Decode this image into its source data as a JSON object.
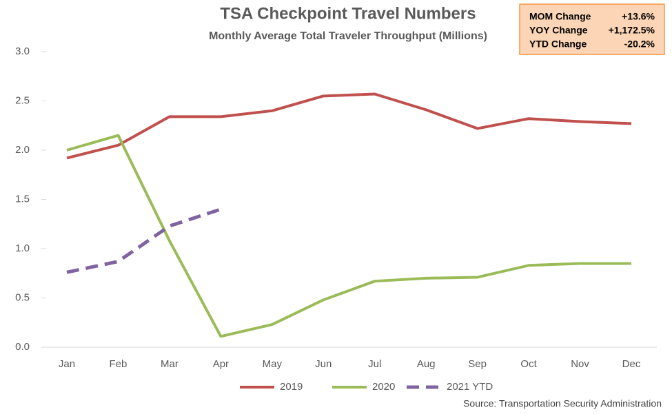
{
  "chart_data": {
    "type": "line",
    "title": "TSA Checkpoint Travel Numbers",
    "subtitle": "Monthly Average Total Traveler Throughput  (Millions)",
    "source": "Source: Transportation Security Administration",
    "stats": [
      {
        "label": "MOM Change",
        "value": "+13.6%"
      },
      {
        "label": "YOY Change",
        "value": "+1,172.5%"
      },
      {
        "label": "YTD Change",
        "value": "-20.2%"
      }
    ],
    "categories": [
      "Jan",
      "Feb",
      "Mar",
      "Apr",
      "May",
      "Jun",
      "Jul",
      "Aug",
      "Sep",
      "Oct",
      "Nov",
      "Dec"
    ],
    "series": [
      {
        "name": "2019",
        "color": "#c0504d",
        "dash": false,
        "values": [
          1.92,
          2.05,
          2.34,
          2.34,
          2.4,
          2.55,
          2.57,
          2.41,
          2.22,
          2.32,
          2.29,
          2.27
        ]
      },
      {
        "name": "2020",
        "color": "#9bbb59",
        "dash": false,
        "values": [
          2.0,
          2.15,
          1.08,
          0.11,
          0.23,
          0.48,
          0.67,
          0.7,
          0.71,
          0.83,
          0.85,
          0.85
        ]
      },
      {
        "name": "2021 YTD",
        "color": "#8064a2",
        "dash": true,
        "values": [
          0.76,
          0.87,
          1.23,
          1.4,
          null,
          null,
          null,
          null,
          null,
          null,
          null,
          null
        ]
      }
    ],
    "ylim": [
      0,
      3
    ],
    "yticks": [
      {
        "value": 0,
        "label": "0.0"
      },
      0.5,
      {
        "value": 1,
        "label": "1.0"
      },
      1.5,
      {
        "value": 2,
        "label": "2.0"
      },
      2.5,
      {
        "value": 3,
        "label": "3.0"
      }
    ],
    "grid": false,
    "legend": "bottom"
  }
}
